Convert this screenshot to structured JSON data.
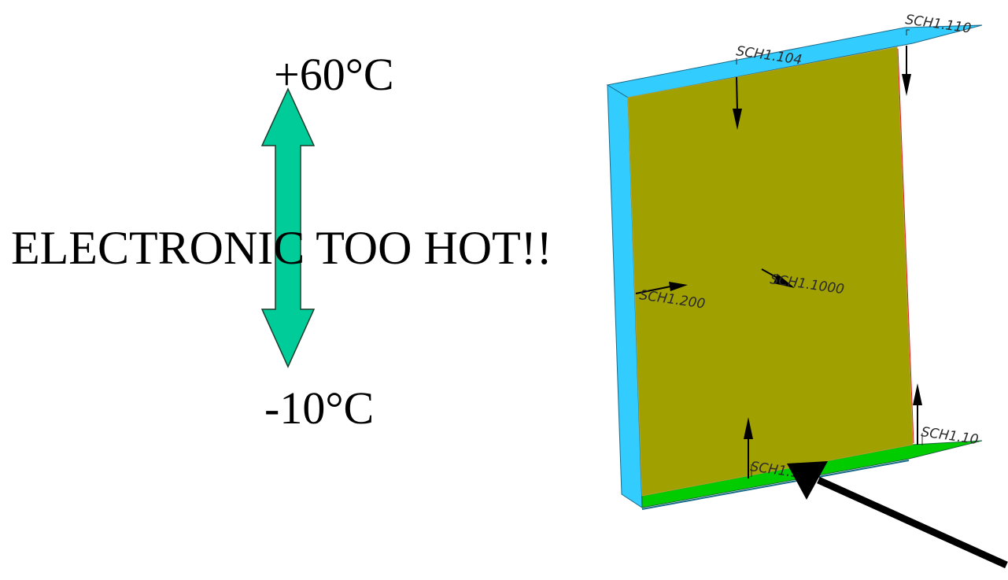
{
  "temperature": {
    "max": "+60°C",
    "min": "-10°C"
  },
  "warning": "ELECTRONIC TOO HOT!!",
  "model": {
    "labels": [
      "SCH1.110",
      "SCH1.104",
      "SCH1.1000",
      "SCH1.200",
      "SCH1.10",
      "SCH1.1"
    ]
  },
  "colors": {
    "range_arrow": "#00cc99",
    "panel": "#a0a000",
    "frame_blue": "#33ccff",
    "frame_green": "#00cc00"
  }
}
